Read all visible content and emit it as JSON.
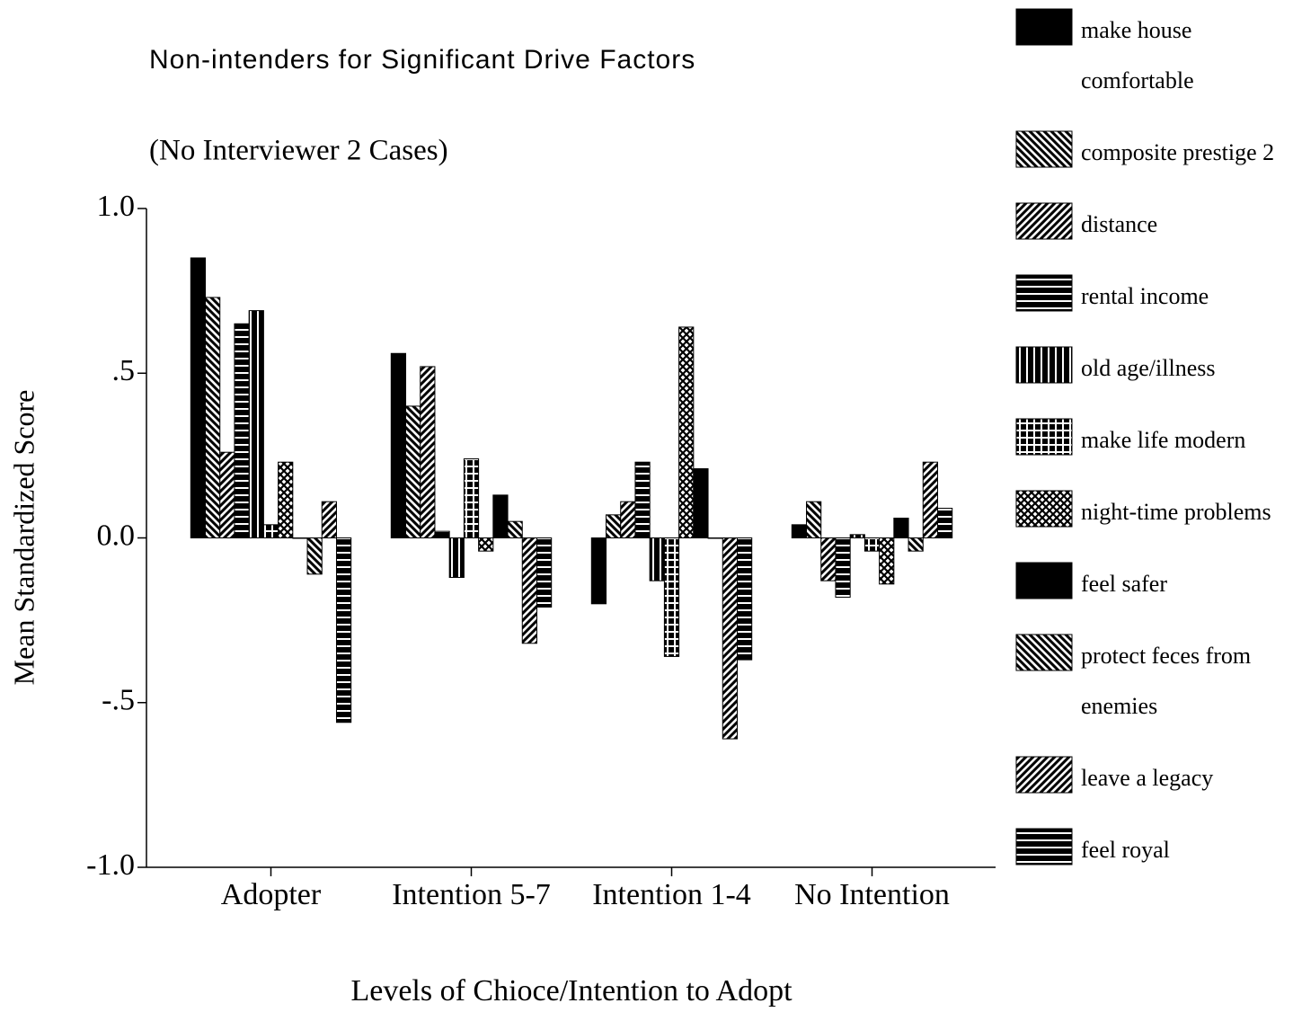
{
  "chart_data": {
    "type": "bar",
    "title": "Non-intenders for Significant Drive Factors",
    "subtitle": "(No Interviewer 2 Cases)",
    "x_label": "Levels of Chioce/Intention to Adopt",
    "y_label": "Mean Standardized Score",
    "categories": [
      "Adopter",
      "Intention 5-7",
      "Intention 1-4",
      "No Intention"
    ],
    "ylim": [
      -1.0,
      1.0
    ],
    "yticks": [
      {
        "value": 1.0,
        "label": "1.0"
      },
      {
        "value": 0.5,
        "label": ".5"
      },
      {
        "value": 0.0,
        "label": "0.0"
      },
      {
        "value": -0.5,
        "label": "-.5"
      },
      {
        "value": -1.0,
        "label": "-1.0"
      }
    ],
    "legend": "right",
    "series": [
      {
        "name": "make house comfortable",
        "color": "#000000",
        "pattern": "solid",
        "values": [
          0.85,
          0.56,
          -0.2,
          0.04
        ]
      },
      {
        "name": "composite prestige 2",
        "color": "#000000",
        "pattern": "diag-down",
        "values": [
          0.73,
          0.4,
          0.07,
          0.11
        ]
      },
      {
        "name": "distance",
        "color": "#000000",
        "pattern": "diag-up",
        "values": [
          0.26,
          0.52,
          0.11,
          -0.13
        ]
      },
      {
        "name": "rental income",
        "color": "#000000",
        "pattern": "hlines",
        "values": [
          0.65,
          0.02,
          0.23,
          -0.18
        ]
      },
      {
        "name": "old age/illness",
        "color": "#000000",
        "pattern": "vlines",
        "values": [
          0.69,
          -0.12,
          -0.13,
          0.01
        ]
      },
      {
        "name": "make life modern",
        "color": "#000000",
        "pattern": "grid",
        "values": [
          0.04,
          0.24,
          -0.36,
          -0.04
        ]
      },
      {
        "name": "night-time problems",
        "color": "#000000",
        "pattern": "crosshatch",
        "values": [
          0.23,
          -0.04,
          0.64,
          -0.14
        ]
      },
      {
        "name": "feel safer",
        "color": "#000000",
        "pattern": "solid",
        "values": [
          0.0,
          0.13,
          0.21,
          0.06
        ]
      },
      {
        "name": "protect feces from enemies",
        "color": "#000000",
        "pattern": "diag-down",
        "values": [
          -0.11,
          0.05,
          0.0,
          -0.04
        ]
      },
      {
        "name": "leave a legacy",
        "color": "#000000",
        "pattern": "diag-up",
        "values": [
          0.11,
          -0.32,
          -0.61,
          0.23
        ]
      },
      {
        "name": "feel royal",
        "color": "#000000",
        "pattern": "hlines",
        "values": [
          -0.56,
          -0.21,
          -0.37,
          0.09
        ]
      }
    ]
  }
}
